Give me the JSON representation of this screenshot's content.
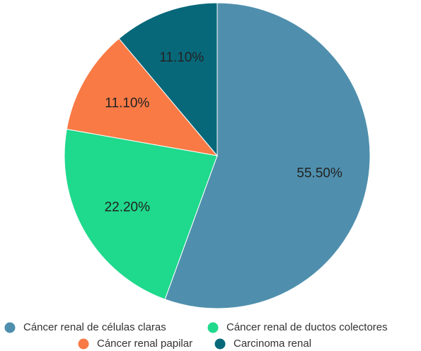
{
  "chart_data": {
    "type": "pie",
    "categories": [
      "Cáncer renal de células claras",
      "Cáncer renal de ductos colectores",
      "Cáncer renal papilar",
      "Carcinoma renal"
    ],
    "values": [
      55.5,
      22.2,
      11.1,
      11.1
    ],
    "value_labels": [
      "55.50%",
      "22.20%",
      "11.10%",
      "11.10%"
    ],
    "colors": [
      "#4f8fad",
      "#1fd98c",
      "#f97a45",
      "#07687a"
    ]
  }
}
